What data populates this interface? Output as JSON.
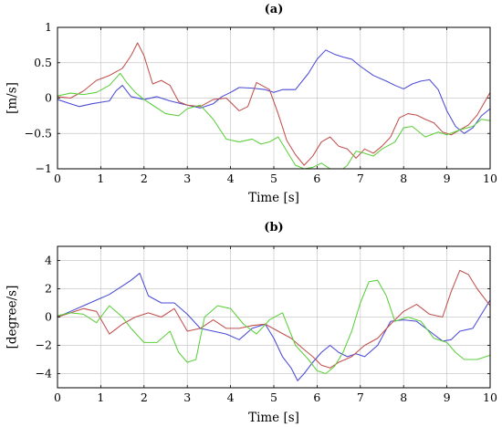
{
  "chart_data": [
    {
      "type": "line",
      "panel": "(a)",
      "title": "(a)",
      "xlabel": "Time [s]",
      "ylabel": "[m/s]",
      "xlim": [
        0,
        10
      ],
      "ylim": [
        -1,
        1
      ],
      "xticks": [
        0,
        1,
        2,
        3,
        4,
        5,
        6,
        7,
        8,
        9,
        10
      ],
      "yticks": [
        -1,
        -0.5,
        0,
        0.5,
        1
      ],
      "ytick_labels": [
        "−1",
        "−0.5",
        "0",
        "0.5",
        "1"
      ],
      "grid": true,
      "series": [
        {
          "color": "#4a4ad6",
          "x": [
            0,
            0.3,
            0.5,
            0.8,
            1.0,
            1.2,
            1.35,
            1.5,
            1.7,
            2.0,
            2.3,
            2.6,
            3.0,
            3.3,
            3.6,
            3.8,
            4.0,
            4.2,
            4.5,
            4.8,
            5.0,
            5.2,
            5.5,
            5.8,
            6.0,
            6.2,
            6.4,
            6.6,
            6.8,
            7.0,
            7.3,
            7.6,
            7.8,
            8.0,
            8.2,
            8.4,
            8.6,
            8.8,
            9.0,
            9.2,
            9.4,
            9.6,
            9.8,
            10.0
          ],
          "y": [
            -0.02,
            -0.08,
            -0.12,
            -0.08,
            -0.06,
            -0.04,
            0.1,
            0.18,
            0.02,
            -0.02,
            0.02,
            -0.04,
            -0.1,
            -0.14,
            -0.08,
            0.02,
            0.08,
            0.15,
            0.14,
            0.12,
            0.08,
            0.12,
            0.12,
            0.35,
            0.55,
            0.68,
            0.62,
            0.58,
            0.55,
            0.45,
            0.32,
            0.24,
            0.18,
            0.13,
            0.2,
            0.24,
            0.26,
            0.12,
            -0.18,
            -0.4,
            -0.5,
            -0.42,
            -0.25,
            -0.15
          ]
        },
        {
          "color": "#c0504d",
          "x": [
            0,
            0.3,
            0.6,
            0.9,
            1.2,
            1.5,
            1.7,
            1.85,
            2.0,
            2.2,
            2.4,
            2.6,
            2.8,
            3.0,
            3.3,
            3.6,
            3.9,
            4.2,
            4.4,
            4.6,
            4.9,
            5.1,
            5.3,
            5.5,
            5.7,
            5.9,
            6.1,
            6.3,
            6.5,
            6.7,
            6.9,
            7.1,
            7.3,
            7.5,
            7.7,
            7.9,
            8.1,
            8.3,
            8.5,
            8.7,
            8.9,
            9.1,
            9.3,
            9.5,
            9.7,
            10.0
          ],
          "y": [
            0.02,
            0.0,
            0.1,
            0.25,
            0.32,
            0.42,
            0.6,
            0.78,
            0.6,
            0.2,
            0.25,
            0.18,
            -0.05,
            -0.1,
            -0.12,
            -0.02,
            0.0,
            -0.18,
            -0.12,
            0.22,
            0.12,
            -0.22,
            -0.6,
            -0.8,
            -0.95,
            -0.82,
            -0.62,
            -0.55,
            -0.68,
            -0.72,
            -0.85,
            -0.72,
            -0.78,
            -0.68,
            -0.55,
            -0.28,
            -0.22,
            -0.24,
            -0.3,
            -0.35,
            -0.48,
            -0.52,
            -0.45,
            -0.38,
            -0.24,
            0.08
          ]
        },
        {
          "color": "#5ccf3c",
          "x": [
            0,
            0.3,
            0.6,
            0.9,
            1.2,
            1.45,
            1.6,
            1.8,
            2.0,
            2.2,
            2.5,
            2.8,
            3.0,
            3.3,
            3.6,
            3.9,
            4.2,
            4.5,
            4.7,
            4.9,
            5.1,
            5.3,
            5.5,
            5.7,
            5.9,
            6.1,
            6.3,
            6.5,
            6.7,
            6.9,
            7.1,
            7.3,
            7.5,
            7.8,
            8.0,
            8.2,
            8.5,
            8.8,
            9.0,
            9.3,
            9.6,
            9.8,
            10.0
          ],
          "y": [
            0.03,
            0.07,
            0.05,
            0.08,
            0.18,
            0.35,
            0.22,
            0.08,
            -0.02,
            -0.1,
            -0.22,
            -0.25,
            -0.15,
            -0.1,
            -0.3,
            -0.58,
            -0.62,
            -0.58,
            -0.65,
            -0.62,
            -0.55,
            -0.75,
            -0.95,
            -1.0,
            -0.98,
            -0.92,
            -1.0,
            -1.05,
            -0.95,
            -0.75,
            -0.78,
            -0.82,
            -0.72,
            -0.62,
            -0.42,
            -0.4,
            -0.55,
            -0.48,
            -0.52,
            -0.45,
            -0.4,
            -0.3,
            -0.32
          ]
        }
      ]
    },
    {
      "type": "line",
      "panel": "(b)",
      "title": "(b)",
      "xlabel": "Time [s]",
      "ylabel": "[degree/s]",
      "xlim": [
        0,
        10
      ],
      "ylim": [
        -5,
        5
      ],
      "xticks": [
        0,
        1,
        2,
        3,
        4,
        5,
        6,
        7,
        8,
        9,
        10
      ],
      "yticks": [
        -4,
        -2,
        0,
        2,
        4
      ],
      "ytick_labels": [
        "−4",
        "−2",
        "0",
        "2",
        "4"
      ],
      "grid": true,
      "series": [
        {
          "color": "#4a4ad6",
          "x": [
            0,
            0.3,
            0.6,
            0.9,
            1.2,
            1.5,
            1.7,
            1.9,
            2.1,
            2.4,
            2.7,
            3.0,
            3.3,
            3.6,
            3.9,
            4.2,
            4.5,
            4.8,
            5.0,
            5.2,
            5.4,
            5.55,
            5.7,
            5.9,
            6.1,
            6.3,
            6.5,
            6.7,
            6.9,
            7.1,
            7.4,
            7.7,
            8.0,
            8.3,
            8.6,
            8.9,
            9.1,
            9.3,
            9.6,
            9.8,
            10.0
          ],
          "y": [
            0.0,
            0.4,
            0.8,
            1.2,
            1.6,
            2.2,
            2.6,
            3.1,
            1.5,
            1.0,
            1.0,
            0.2,
            -0.8,
            -1.0,
            -1.2,
            -1.6,
            -0.8,
            -0.5,
            -1.5,
            -2.8,
            -3.6,
            -4.5,
            -4.0,
            -3.2,
            -2.5,
            -2.0,
            -2.5,
            -2.8,
            -2.6,
            -2.8,
            -2.0,
            -0.3,
            -0.2,
            -0.3,
            -1.0,
            -1.7,
            -1.6,
            -1.0,
            -0.8,
            0.2,
            1.2
          ]
        },
        {
          "color": "#c0504d",
          "x": [
            0,
            0.3,
            0.6,
            0.9,
            1.2,
            1.5,
            1.8,
            2.1,
            2.4,
            2.7,
            3.0,
            3.3,
            3.6,
            3.9,
            4.2,
            4.5,
            4.8,
            5.1,
            5.4,
            5.7,
            5.9,
            6.1,
            6.3,
            6.5,
            6.8,
            7.1,
            7.4,
            7.7,
            8.0,
            8.3,
            8.6,
            8.9,
            9.1,
            9.3,
            9.5,
            9.7,
            10.0
          ],
          "y": [
            0.0,
            0.3,
            0.6,
            0.4,
            -1.2,
            -0.5,
            0.0,
            0.3,
            0.0,
            0.6,
            -1.0,
            -0.8,
            -0.2,
            -0.8,
            -0.8,
            -0.6,
            -0.5,
            -1.0,
            -1.5,
            -2.3,
            -2.8,
            -3.4,
            -3.6,
            -3.2,
            -2.8,
            -2.0,
            -1.5,
            -0.5,
            0.4,
            0.9,
            0.2,
            0.0,
            1.8,
            3.3,
            3.0,
            2.0,
            0.8
          ]
        },
        {
          "color": "#5ccf3c",
          "x": [
            0,
            0.3,
            0.6,
            0.9,
            1.2,
            1.5,
            1.7,
            2.0,
            2.3,
            2.6,
            2.8,
            3.0,
            3.2,
            3.4,
            3.7,
            4.0,
            4.3,
            4.6,
            4.9,
            5.2,
            5.5,
            5.8,
            6.0,
            6.2,
            6.4,
            6.6,
            6.8,
            7.0,
            7.2,
            7.4,
            7.6,
            7.8,
            8.1,
            8.4,
            8.7,
            9.0,
            9.2,
            9.4,
            9.7,
            10.0
          ],
          "y": [
            0.1,
            0.3,
            0.2,
            -0.4,
            0.8,
            0.0,
            -0.8,
            -1.8,
            -1.8,
            -1.0,
            -2.5,
            -3.2,
            -3.0,
            0.0,
            0.8,
            0.6,
            -0.5,
            -1.2,
            -0.2,
            0.3,
            -2.0,
            -3.0,
            -3.8,
            -4.0,
            -3.5,
            -2.5,
            -1.0,
            1.0,
            2.5,
            2.6,
            1.5,
            -0.3,
            0.0,
            -0.3,
            -1.5,
            -1.8,
            -2.5,
            -3.0,
            -3.0,
            -2.7
          ]
        }
      ]
    }
  ]
}
